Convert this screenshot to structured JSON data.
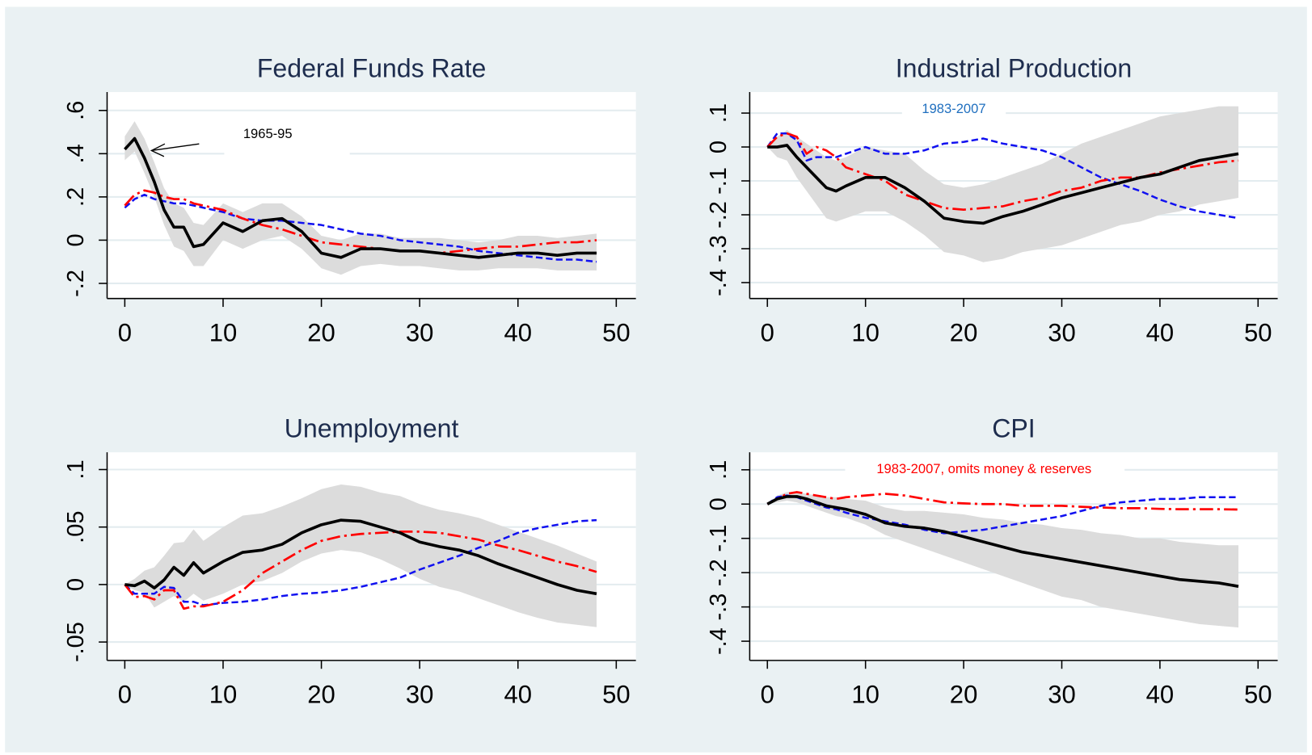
{
  "chart_data": [
    {
      "type": "line",
      "title": "Federal Funds Rate",
      "x": [
        0,
        1,
        2,
        3,
        4,
        5,
        6,
        7,
        8,
        10,
        12,
        14,
        16,
        18,
        20,
        22,
        24,
        26,
        28,
        30,
        32,
        34,
        36,
        38,
        40,
        42,
        44,
        46,
        48
      ],
      "xlim": [
        -1.8,
        52
      ],
      "xticks": [
        0,
        10,
        20,
        30,
        40,
        50
      ],
      "ylim": [
        -0.27,
        0.685
      ],
      "yticks": [
        {
          "value": -0.2,
          "label": "-.2"
        },
        0,
        {
          "value": 0.2,
          "label": ".2"
        },
        {
          "value": 0.4,
          "label": ".4"
        },
        {
          "value": 0.6,
          "label": ".6"
        }
      ],
      "grid": true,
      "band": {
        "color": "#dcdcdc",
        "lower": [
          0.37,
          0.41,
          0.31,
          0.2,
          0.07,
          -0.03,
          -0.05,
          -0.12,
          -0.12,
          0,
          -0.04,
          0,
          0.02,
          -0.04,
          -0.13,
          -0.16,
          -0.12,
          -0.11,
          -0.12,
          -0.12,
          -0.13,
          -0.14,
          -0.14,
          -0.13,
          -0.13,
          -0.13,
          -0.14,
          -0.14,
          -0.14
        ],
        "upper": [
          0.48,
          0.55,
          0.47,
          0.36,
          0.24,
          0.17,
          0.15,
          0.08,
          0.07,
          0.17,
          0.13,
          0.17,
          0.17,
          0.11,
          0.02,
          0,
          0.03,
          0.03,
          0.01,
          0.01,
          0.01,
          0,
          -0.01,
          0,
          0.02,
          0.02,
          0.01,
          0.02,
          0.03
        ]
      },
      "series": [
        {
          "color": "#000000",
          "style": "solid",
          "values": [
            0.42,
            0.47,
            0.38,
            0.27,
            0.14,
            0.06,
            0.06,
            -0.03,
            -0.02,
            0.08,
            0.04,
            0.09,
            0.1,
            0.04,
            -0.06,
            -0.08,
            -0.04,
            -0.04,
            -0.05,
            -0.05,
            -0.06,
            -0.07,
            -0.08,
            -0.07,
            -0.06,
            -0.06,
            -0.07,
            -0.06,
            -0.06
          ]
        },
        {
          "color": "#ff0000",
          "style": "dashdot",
          "values": [
            0.16,
            0.21,
            0.23,
            0.22,
            0.2,
            0.19,
            0.19,
            0.17,
            0.16,
            0.14,
            0.1,
            0.07,
            0.05,
            0.02,
            -0.01,
            -0.02,
            -0.03,
            -0.04,
            -0.05,
            -0.05,
            -0.06,
            -0.05,
            -0.04,
            -0.03,
            -0.03,
            -0.02,
            -0.01,
            -0.01,
            0
          ]
        },
        {
          "color": "#1010f0",
          "style": "dash",
          "values": [
            0.15,
            0.19,
            0.21,
            0.19,
            0.18,
            0.17,
            0.17,
            0.16,
            0.15,
            0.13,
            0.1,
            0.09,
            0.09,
            0.08,
            0.07,
            0.05,
            0.03,
            0.02,
            0,
            -0.01,
            -0.02,
            -0.03,
            -0.05,
            -0.06,
            -0.07,
            -0.08,
            -0.09,
            -0.09,
            -0.1
          ]
        }
      ],
      "annotation": {
        "text": "1965-95",
        "color": "#000000"
      }
    },
    {
      "type": "line",
      "title": "Industrial Production",
      "x": [
        0,
        1,
        2,
        3,
        4,
        5,
        6,
        7,
        8,
        10,
        12,
        14,
        16,
        18,
        20,
        22,
        24,
        26,
        28,
        30,
        32,
        34,
        36,
        38,
        40,
        42,
        44,
        46,
        48
      ],
      "xlim": [
        -1.8,
        52
      ],
      "xticks": [
        0,
        10,
        20,
        30,
        40,
        50
      ],
      "ylim": [
        -0.447,
        0.162
      ],
      "yticks": [
        {
          "value": -0.4,
          "label": "-.4"
        },
        {
          "value": -0.3,
          "label": "-.3"
        },
        {
          "value": -0.2,
          "label": "-.2"
        },
        {
          "value": -0.1,
          "label": "-.1"
        },
        0,
        {
          "value": 0.1,
          "label": ".1"
        }
      ],
      "grid": true,
      "band": {
        "color": "#dcdcdc",
        "lower": [
          0,
          -0.03,
          -0.04,
          -0.09,
          -0.13,
          -0.17,
          -0.21,
          -0.22,
          -0.21,
          -0.19,
          -0.19,
          -0.22,
          -0.26,
          -0.31,
          -0.32,
          -0.34,
          -0.33,
          -0.31,
          -0.3,
          -0.29,
          -0.27,
          -0.25,
          -0.23,
          -0.22,
          -0.2,
          -0.19,
          -0.17,
          -0.16,
          -0.15
        ],
        "upper": [
          0,
          0.03,
          0.05,
          0.03,
          0.01,
          -0.01,
          -0.03,
          -0.04,
          -0.03,
          0,
          -0.01,
          -0.02,
          -0.07,
          -0.11,
          -0.12,
          -0.11,
          -0.09,
          -0.07,
          -0.05,
          -0.02,
          0.01,
          0.03,
          0.05,
          0.07,
          0.09,
          0.1,
          0.11,
          0.12,
          0.12
        ]
      },
      "series": [
        {
          "color": "#000000",
          "style": "solid",
          "values": [
            0,
            0,
            0.005,
            -0.03,
            -0.06,
            -0.09,
            -0.12,
            -0.13,
            -0.115,
            -0.09,
            -0.09,
            -0.12,
            -0.16,
            -0.21,
            -0.22,
            -0.225,
            -0.205,
            -0.19,
            -0.17,
            -0.15,
            -0.135,
            -0.12,
            -0.105,
            -0.09,
            -0.08,
            -0.06,
            -0.04,
            -0.03,
            -0.02
          ]
        },
        {
          "color": "#ff0000",
          "style": "dashdot",
          "values": [
            0,
            0.03,
            0.04,
            0.03,
            -0.02,
            0,
            -0.01,
            -0.03,
            -0.06,
            -0.08,
            -0.1,
            -0.14,
            -0.16,
            -0.18,
            -0.185,
            -0.18,
            -0.175,
            -0.16,
            -0.15,
            -0.13,
            -0.12,
            -0.1,
            -0.09,
            -0.09,
            -0.075,
            -0.065,
            -0.055,
            -0.045,
            -0.04
          ]
        },
        {
          "color": "#1010f0",
          "style": "dash",
          "values": [
            0,
            0.04,
            0.04,
            0.02,
            -0.04,
            -0.03,
            -0.03,
            -0.03,
            -0.02,
            0,
            -0.02,
            -0.02,
            -0.01,
            0.01,
            0.015,
            0.025,
            0.01,
            0,
            -0.01,
            -0.03,
            -0.06,
            -0.09,
            -0.11,
            -0.13,
            -0.155,
            -0.175,
            -0.19,
            -0.2,
            -0.21
          ]
        }
      ],
      "annotation": {
        "text": "1983-2007",
        "color": "#1f6fbf"
      }
    },
    {
      "type": "line",
      "title": "Unemployment",
      "x": [
        0,
        1,
        2,
        3,
        4,
        5,
        6,
        7,
        8,
        10,
        12,
        14,
        16,
        18,
        20,
        22,
        24,
        26,
        28,
        30,
        32,
        34,
        36,
        38,
        40,
        42,
        44,
        46,
        48
      ],
      "xlim": [
        -1.8,
        52
      ],
      "xticks": [
        0,
        10,
        20,
        30,
        40,
        50
      ],
      "ylim": [
        -0.066,
        0.115
      ],
      "yticks": [
        {
          "value": -0.05,
          "label": "-.05"
        },
        0,
        {
          "value": 0.05,
          "label": ".05"
        },
        {
          "value": 0.1,
          "label": ".1"
        }
      ],
      "grid": true,
      "band": {
        "color": "#dcdcdc",
        "lower": [
          0,
          -0.005,
          -0.007,
          -0.02,
          -0.015,
          -0.01,
          -0.015,
          -0.008,
          -0.014,
          -0.008,
          0,
          0.003,
          0.01,
          0.02,
          0.027,
          0.03,
          0.028,
          0.022,
          0.014,
          0.005,
          -0.002,
          -0.006,
          -0.012,
          -0.018,
          -0.024,
          -0.029,
          -0.033,
          -0.035,
          -0.037
        ],
        "upper": [
          0,
          0.005,
          0.012,
          0.015,
          0.025,
          0.036,
          0.037,
          0.048,
          0.038,
          0.05,
          0.06,
          0.062,
          0.068,
          0.075,
          0.083,
          0.087,
          0.085,
          0.08,
          0.077,
          0.07,
          0.065,
          0.062,
          0.058,
          0.052,
          0.046,
          0.04,
          0.034,
          0.027,
          0.02
        ]
      },
      "series": [
        {
          "color": "#000000",
          "style": "solid",
          "values": [
            0,
            -0.001,
            0.003,
            -0.003,
            0.004,
            0.015,
            0.008,
            0.019,
            0.01,
            0.02,
            0.028,
            0.03,
            0.035,
            0.045,
            0.052,
            0.056,
            0.055,
            0.05,
            0.045,
            0.037,
            0.033,
            0.03,
            0.025,
            0.018,
            0.012,
            0.006,
            0,
            -0.005,
            -0.008
          ]
        },
        {
          "color": "#ff0000",
          "style": "dashdot",
          "values": [
            0,
            -0.011,
            -0.01,
            -0.013,
            -0.005,
            -0.005,
            -0.021,
            -0.019,
            -0.019,
            -0.015,
            -0.005,
            0.01,
            0.02,
            0.03,
            0.038,
            0.042,
            0.044,
            0.045,
            0.046,
            0.046,
            0.045,
            0.042,
            0.039,
            0.034,
            0.03,
            0.025,
            0.02,
            0.016,
            0.011
          ]
        },
        {
          "color": "#1010f0",
          "style": "dash",
          "values": [
            0,
            -0.008,
            -0.008,
            -0.008,
            -0.002,
            -0.003,
            -0.015,
            -0.015,
            -0.018,
            -0.016,
            -0.015,
            -0.013,
            -0.01,
            -0.008,
            -0.007,
            -0.005,
            -0.002,
            0.002,
            0.006,
            0.013,
            0.019,
            0.025,
            0.032,
            0.038,
            0.045,
            0.049,
            0.052,
            0.055,
            0.056
          ]
        }
      ]
    },
    {
      "type": "line",
      "title": "CPI",
      "x": [
        0,
        1,
        2,
        3,
        4,
        5,
        6,
        7,
        8,
        10,
        12,
        14,
        16,
        18,
        20,
        22,
        24,
        26,
        28,
        30,
        32,
        34,
        36,
        38,
        40,
        42,
        44,
        46,
        48
      ],
      "xlim": [
        -1.8,
        52
      ],
      "xticks": [
        0,
        10,
        20,
        30,
        40,
        50
      ],
      "ylim": [
        -0.456,
        0.151
      ],
      "yticks": [
        {
          "value": -0.4,
          "label": "-.4"
        },
        {
          "value": -0.3,
          "label": "-.3"
        },
        {
          "value": -0.2,
          "label": "-.2"
        },
        {
          "value": -0.1,
          "label": "-.1"
        },
        0,
        {
          "value": 0.1,
          "label": ".1"
        }
      ],
      "grid": true,
      "band": {
        "color": "#dcdcdc",
        "lower": [
          0,
          0.005,
          0.01,
          0.005,
          -0.005,
          -0.015,
          -0.025,
          -0.035,
          -0.04,
          -0.06,
          -0.09,
          -0.11,
          -0.13,
          -0.15,
          -0.17,
          -0.19,
          -0.21,
          -0.23,
          -0.25,
          -0.27,
          -0.28,
          -0.3,
          -0.31,
          -0.32,
          -0.33,
          -0.34,
          -0.35,
          -0.355,
          -0.36
        ],
        "upper": [
          0,
          0.025,
          0.035,
          0.035,
          0.03,
          0.025,
          0.02,
          0.02,
          0.015,
          0.01,
          -0.01,
          -0.02,
          -0.02,
          -0.025,
          -0.03,
          -0.04,
          -0.045,
          -0.055,
          -0.06,
          -0.07,
          -0.075,
          -0.085,
          -0.09,
          -0.1,
          -0.1,
          -0.11,
          -0.115,
          -0.12,
          -0.12
        ]
      },
      "series": [
        {
          "color": "#000000",
          "style": "solid",
          "values": [
            0,
            0.015,
            0.022,
            0.022,
            0.015,
            0.005,
            -0.005,
            -0.01,
            -0.015,
            -0.03,
            -0.055,
            -0.065,
            -0.07,
            -0.08,
            -0.095,
            -0.11,
            -0.125,
            -0.14,
            -0.15,
            -0.16,
            -0.17,
            -0.18,
            -0.19,
            -0.2,
            -0.21,
            -0.22,
            -0.225,
            -0.23,
            -0.24
          ]
        },
        {
          "color": "#ff0000",
          "style": "dashdot",
          "values": [
            0,
            0.015,
            0.03,
            0.035,
            0.03,
            0.025,
            0.02,
            0.015,
            0.02,
            0.025,
            0.03,
            0.025,
            0.015,
            0.005,
            0.002,
            0,
            0,
            -0.005,
            -0.005,
            -0.005,
            -0.008,
            -0.01,
            -0.012,
            -0.012,
            -0.014,
            -0.015,
            -0.015,
            -0.015,
            -0.016
          ]
        },
        {
          "color": "#1010f0",
          "style": "dash",
          "values": [
            0,
            0.02,
            0.025,
            0.02,
            0.01,
            0,
            -0.01,
            -0.015,
            -0.025,
            -0.04,
            -0.05,
            -0.06,
            -0.075,
            -0.085,
            -0.08,
            -0.075,
            -0.065,
            -0.055,
            -0.045,
            -0.035,
            -0.02,
            -0.005,
            0.005,
            0.01,
            0.015,
            0.015,
            0.02,
            0.02,
            0.02
          ]
        }
      ],
      "annotation": {
        "text": "1983-2007, omits money & reserves",
        "color": "#ff0000"
      }
    }
  ]
}
